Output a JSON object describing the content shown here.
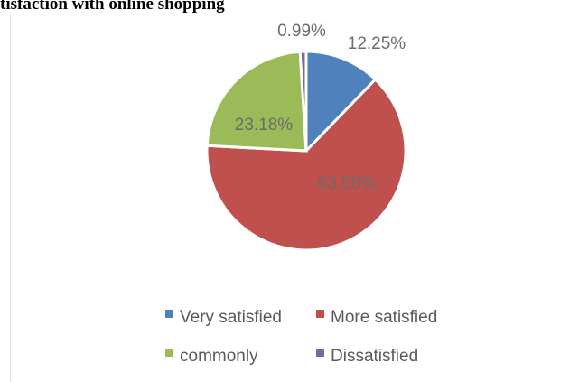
{
  "header": {
    "title": "tisfaction with online shopping"
  },
  "chart_data": {
    "type": "pie",
    "title": "",
    "categories": [
      "Very satisfied",
      "More satisfied",
      "commonly",
      "Dissatisfied"
    ],
    "values": [
      12.25,
      63.58,
      23.18,
      0.99
    ],
    "labels": [
      "12.25%",
      "63.58%",
      "23.18%",
      "0.99%"
    ],
    "colors": [
      "#4f81bd",
      "#c0504d",
      "#9bbb59",
      "#8064a2"
    ],
    "legend": "bottom",
    "start_angle_deg": 0,
    "direction": "clockwise"
  }
}
